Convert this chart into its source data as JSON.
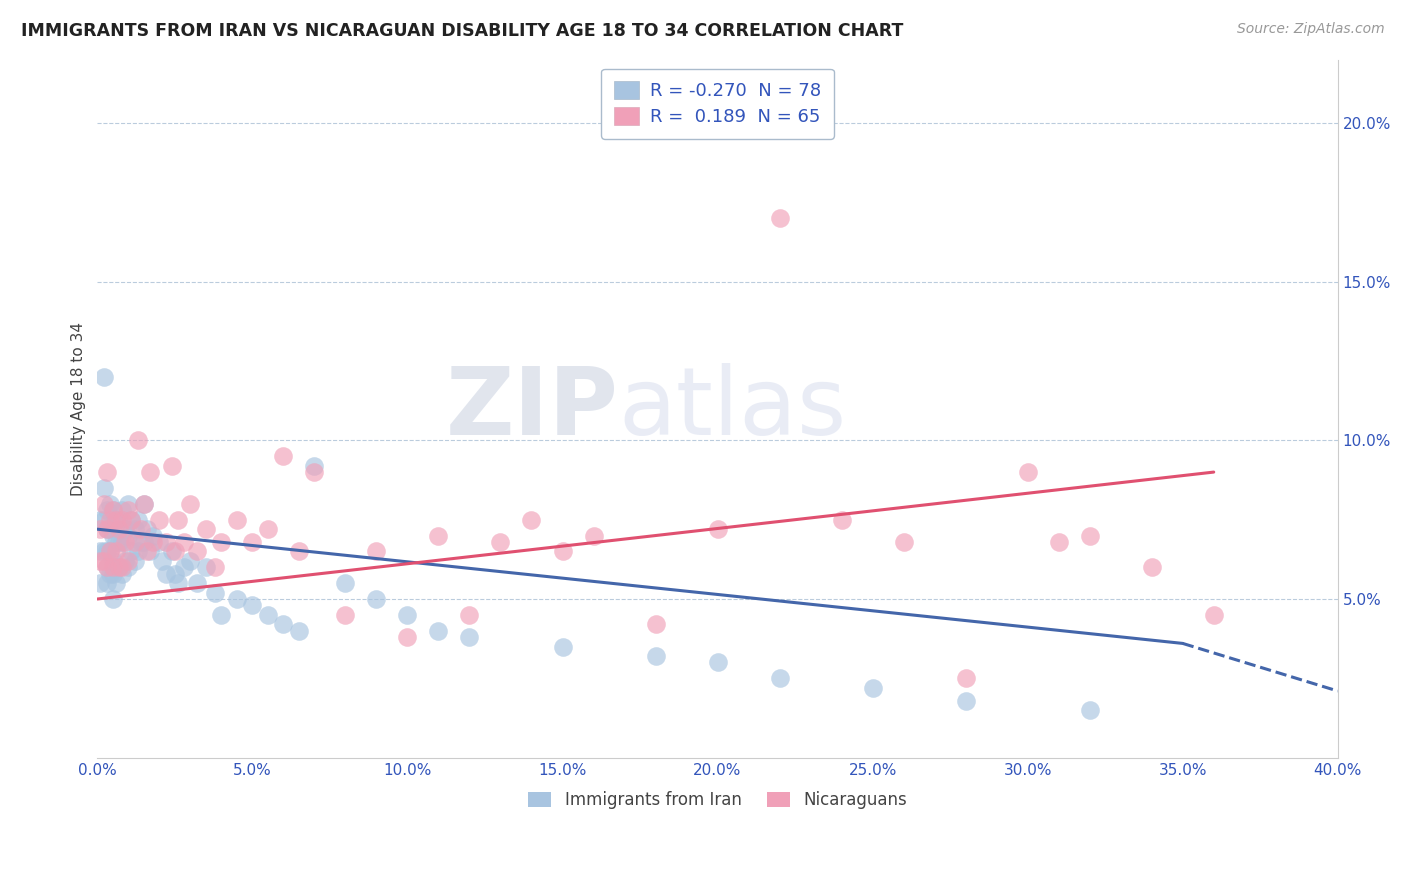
{
  "title": "IMMIGRANTS FROM IRAN VS NICARAGUAN DISABILITY AGE 18 TO 34 CORRELATION CHART",
  "source": "Source: ZipAtlas.com",
  "ylabel": "Disability Age 18 to 34",
  "legend_label1": "Immigrants from Iran",
  "legend_label2": "Nicaraguans",
  "r1": -0.27,
  "n1": 78,
  "r2": 0.189,
  "n2": 65,
  "color_blue": "#A8C4E0",
  "color_pink": "#F0A0B8",
  "trend_blue": "#4466AA",
  "trend_pink": "#E05070",
  "xlim": [
    0.0,
    0.4
  ],
  "ylim": [
    0.0,
    0.22
  ],
  "xticks": [
    0.0,
    0.05,
    0.1,
    0.15,
    0.2,
    0.25,
    0.3,
    0.35,
    0.4
  ],
  "yticks_right": [
    0.05,
    0.1,
    0.15,
    0.2
  ],
  "watermark_zip": "ZIP",
  "watermark_atlas": "atlas",
  "blue_scatter_x": [
    0.001,
    0.001,
    0.001,
    0.002,
    0.002,
    0.002,
    0.002,
    0.003,
    0.003,
    0.003,
    0.003,
    0.003,
    0.004,
    0.004,
    0.004,
    0.004,
    0.005,
    0.005,
    0.005,
    0.005,
    0.005,
    0.006,
    0.006,
    0.006,
    0.006,
    0.007,
    0.007,
    0.007,
    0.008,
    0.008,
    0.008,
    0.009,
    0.009,
    0.01,
    0.01,
    0.01,
    0.011,
    0.011,
    0.012,
    0.012,
    0.013,
    0.013,
    0.014,
    0.015,
    0.015,
    0.016,
    0.017,
    0.018,
    0.02,
    0.021,
    0.022,
    0.024,
    0.025,
    0.026,
    0.028,
    0.03,
    0.032,
    0.035,
    0.038,
    0.04,
    0.045,
    0.05,
    0.055,
    0.06,
    0.065,
    0.07,
    0.08,
    0.09,
    0.1,
    0.11,
    0.12,
    0.15,
    0.18,
    0.2,
    0.22,
    0.25,
    0.28,
    0.32
  ],
  "blue_scatter_y": [
    0.075,
    0.065,
    0.055,
    0.12,
    0.085,
    0.075,
    0.065,
    0.078,
    0.072,
    0.065,
    0.06,
    0.055,
    0.08,
    0.072,
    0.065,
    0.058,
    0.078,
    0.07,
    0.062,
    0.058,
    0.05,
    0.075,
    0.068,
    0.06,
    0.055,
    0.075,
    0.068,
    0.06,
    0.078,
    0.068,
    0.058,
    0.072,
    0.062,
    0.08,
    0.07,
    0.06,
    0.075,
    0.065,
    0.072,
    0.062,
    0.075,
    0.065,
    0.068,
    0.08,
    0.068,
    0.072,
    0.065,
    0.07,
    0.068,
    0.062,
    0.058,
    0.065,
    0.058,
    0.055,
    0.06,
    0.062,
    0.055,
    0.06,
    0.052,
    0.045,
    0.05,
    0.048,
    0.045,
    0.042,
    0.04,
    0.092,
    0.055,
    0.05,
    0.045,
    0.04,
    0.038,
    0.035,
    0.032,
    0.03,
    0.025,
    0.022,
    0.018,
    0.015
  ],
  "pink_scatter_x": [
    0.001,
    0.001,
    0.002,
    0.002,
    0.003,
    0.003,
    0.003,
    0.004,
    0.004,
    0.005,
    0.005,
    0.006,
    0.006,
    0.007,
    0.007,
    0.008,
    0.008,
    0.009,
    0.01,
    0.01,
    0.011,
    0.012,
    0.013,
    0.014,
    0.015,
    0.016,
    0.017,
    0.018,
    0.02,
    0.022,
    0.024,
    0.025,
    0.026,
    0.028,
    0.03,
    0.032,
    0.035,
    0.038,
    0.04,
    0.045,
    0.05,
    0.055,
    0.06,
    0.065,
    0.07,
    0.08,
    0.09,
    0.1,
    0.11,
    0.12,
    0.13,
    0.14,
    0.15,
    0.16,
    0.18,
    0.2,
    0.22,
    0.24,
    0.26,
    0.28,
    0.3,
    0.31,
    0.32,
    0.34,
    0.36
  ],
  "pink_scatter_y": [
    0.072,
    0.062,
    0.08,
    0.062,
    0.09,
    0.072,
    0.06,
    0.075,
    0.065,
    0.078,
    0.06,
    0.075,
    0.065,
    0.072,
    0.06,
    0.075,
    0.06,
    0.068,
    0.078,
    0.062,
    0.075,
    0.068,
    0.1,
    0.072,
    0.08,
    0.065,
    0.09,
    0.068,
    0.075,
    0.068,
    0.092,
    0.065,
    0.075,
    0.068,
    0.08,
    0.065,
    0.072,
    0.06,
    0.068,
    0.075,
    0.068,
    0.072,
    0.095,
    0.065,
    0.09,
    0.045,
    0.065,
    0.038,
    0.07,
    0.045,
    0.068,
    0.075,
    0.065,
    0.07,
    0.042,
    0.072,
    0.17,
    0.075,
    0.068,
    0.025,
    0.09,
    0.068,
    0.07,
    0.06,
    0.045
  ],
  "blue_trend_x0": 0.0,
  "blue_trend_y0": 0.072,
  "blue_trend_x1": 0.35,
  "blue_trend_y1": 0.036,
  "blue_trend_xdash": 0.35,
  "blue_trend_xdash_end": 0.4,
  "blue_trend_ydash_end": 0.021,
  "pink_trend_x0": 0.0,
  "pink_trend_y0": 0.05,
  "pink_trend_x1": 0.36,
  "pink_trend_y1": 0.09
}
